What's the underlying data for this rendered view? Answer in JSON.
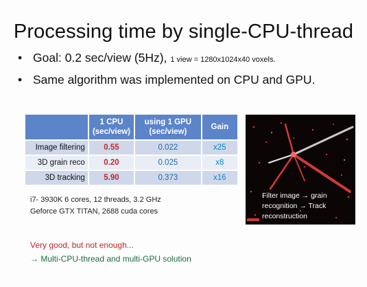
{
  "slide": {
    "title": "Processing time by single-CPU-thread",
    "bullets": {
      "goal": {
        "bullet_char": "•",
        "main": "Goal: 0.2 sec/view (5Hz),",
        "detail": "1 view = 1280x1024x40 voxels."
      },
      "same_algo": {
        "bullet_char": "•",
        "main": "Same algorithm was implemented on CPU and GPU."
      }
    },
    "table": {
      "headers": {
        "cpu_line1": "1 CPU",
        "cpu_line2": "(sec/view)",
        "gpu_line1": "using 1 GPU",
        "gpu_line2": "(sec/view)",
        "gain": "Gain"
      },
      "rows": [
        {
          "label": "Image filtering",
          "cpu": "0.55",
          "gpu": "0.022",
          "gain": "x25"
        },
        {
          "label": "3D grain reco",
          "cpu": "0.20",
          "gpu": "0.025",
          "gain": "x8"
        },
        {
          "label": "3D tracking",
          "cpu": "5.90",
          "gpu": "0.373",
          "gain": "x16"
        }
      ]
    },
    "hardware": {
      "cpu": "i7- 3930K 6 cores, 12 threads, 3.2 GHz",
      "gpu": "Geforce GTX TITAN, 2688 cuda cores"
    },
    "image_caption": {
      "line1": "Filter image → grain",
      "line2": "recognition → Track",
      "line3": "reconstruction"
    },
    "notes": {
      "line1": "Very good, but not enough...",
      "line2": "→ Multi-CPU-thread and multi-GPU solution"
    },
    "colors": {
      "header_bg": "#5b84c9",
      "row_dark": "#cfd8ea",
      "row_light": "#e8edf6",
      "cpu_value": "#c0282e",
      "gpu_value": "#1f6ba8",
      "gain_value": "#0a86c7",
      "note_warning": "#c0282e",
      "note_solution": "#1e6b3e"
    }
  }
}
